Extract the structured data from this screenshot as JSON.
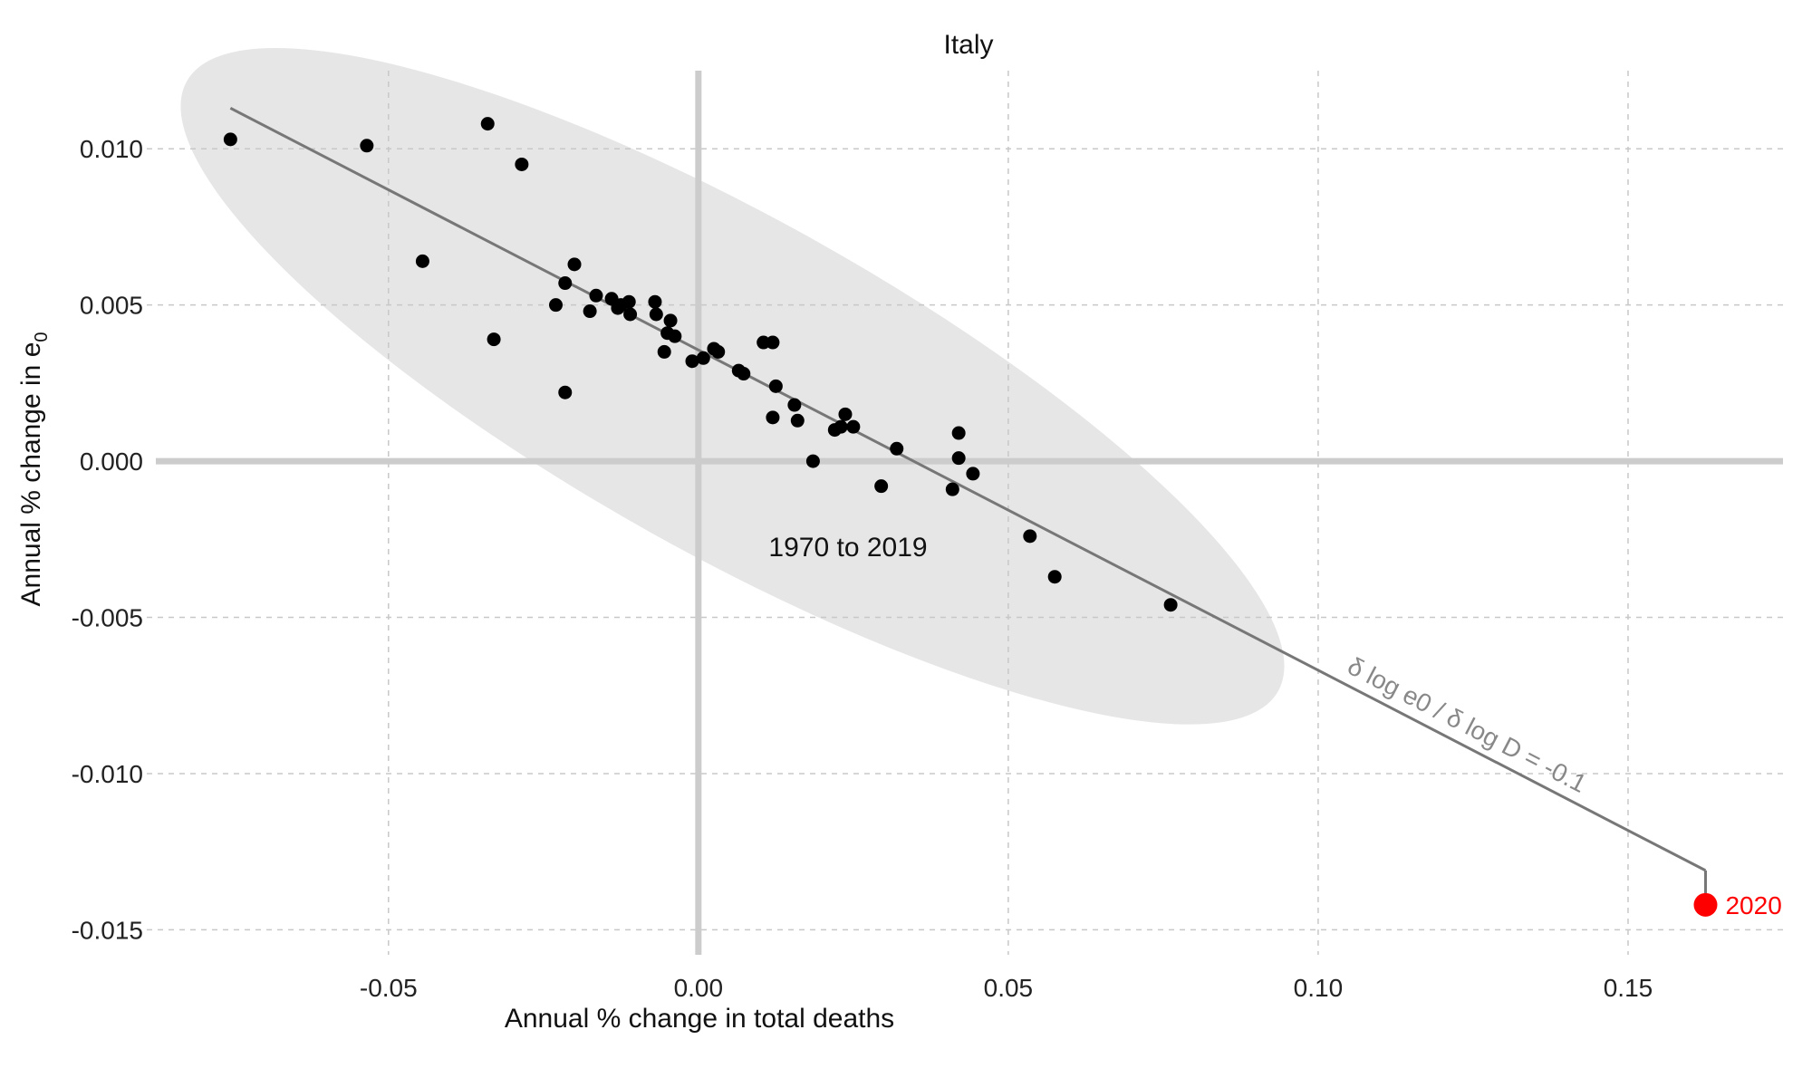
{
  "chart_data": {
    "type": "scatter",
    "title": "Italy",
    "xlabel": "Annual % change in total deaths",
    "ylabel_main": "Annual % change in e",
    "ylabel_sub": "0",
    "xlim": [
      -0.089,
      0.175
    ],
    "ylim": [
      -0.0158,
      0.0125
    ],
    "x_ticks": [
      -0.05,
      0.0,
      0.05,
      0.1,
      0.15
    ],
    "x_tick_labels": [
      "-0.05",
      "0.00",
      "0.05",
      "0.10",
      "0.15"
    ],
    "y_ticks": [
      -0.015,
      -0.01,
      -0.005,
      0.0,
      0.005,
      0.01
    ],
    "y_tick_labels": [
      "-0.015",
      "-0.010",
      "-0.005",
      "0.000",
      "0.005",
      "0.010"
    ],
    "grid": true,
    "colors": {
      "points": "#000000",
      "highlight": "#ff0000",
      "line": "#777777",
      "ellipse": "#e6e6e6",
      "grid": "#c8c8c8",
      "zero_lines": "#cccccc"
    },
    "points": [
      {
        "x": -0.0755,
        "y": 0.0103
      },
      {
        "x": -0.0535,
        "y": 0.0101
      },
      {
        "x": -0.034,
        "y": 0.0108
      },
      {
        "x": -0.0285,
        "y": 0.0095
      },
      {
        "x": -0.0445,
        "y": 0.0064
      },
      {
        "x": -0.033,
        "y": 0.0039
      },
      {
        "x": -0.02,
        "y": 0.0063
      },
      {
        "x": -0.0215,
        "y": 0.0057
      },
      {
        "x": -0.023,
        "y": 0.005
      },
      {
        "x": -0.0175,
        "y": 0.0048
      },
      {
        "x": -0.0165,
        "y": 0.0053
      },
      {
        "x": -0.014,
        "y": 0.0052
      },
      {
        "x": -0.013,
        "y": 0.0049
      },
      {
        "x": -0.0125,
        "y": 0.005
      },
      {
        "x": -0.011,
        "y": 0.0047
      },
      {
        "x": -0.0112,
        "y": 0.0051
      },
      {
        "x": -0.007,
        "y": 0.0051
      },
      {
        "x": -0.0068,
        "y": 0.0047
      },
      {
        "x": -0.0045,
        "y": 0.0045
      },
      {
        "x": -0.005,
        "y": 0.0041
      },
      {
        "x": -0.0038,
        "y": 0.004
      },
      {
        "x": -0.0055,
        "y": 0.0035
      },
      {
        "x": -0.0215,
        "y": 0.0022
      },
      {
        "x": -0.001,
        "y": 0.0032
      },
      {
        "x": 0.0008,
        "y": 0.0033
      },
      {
        "x": 0.0025,
        "y": 0.0036
      },
      {
        "x": 0.0032,
        "y": 0.0035
      },
      {
        "x": 0.0065,
        "y": 0.0029
      },
      {
        "x": 0.0073,
        "y": 0.0028
      },
      {
        "x": 0.0105,
        "y": 0.0038
      },
      {
        "x": 0.012,
        "y": 0.0038
      },
      {
        "x": 0.0125,
        "y": 0.0024
      },
      {
        "x": 0.0155,
        "y": 0.0018
      },
      {
        "x": 0.012,
        "y": 0.0014
      },
      {
        "x": 0.016,
        "y": 0.0013
      },
      {
        "x": 0.022,
        "y": 0.001
      },
      {
        "x": 0.023,
        "y": 0.0011
      },
      {
        "x": 0.0237,
        "y": 0.0015
      },
      {
        "x": 0.025,
        "y": 0.0011
      },
      {
        "x": 0.0185,
        "y": 0.0
      },
      {
        "x": 0.032,
        "y": 0.0004
      },
      {
        "x": 0.0295,
        "y": -0.0008
      },
      {
        "x": 0.042,
        "y": 0.0009
      },
      {
        "x": 0.042,
        "y": 0.0001
      },
      {
        "x": 0.0443,
        "y": -0.0004
      },
      {
        "x": 0.041,
        "y": -0.0009
      },
      {
        "x": 0.0535,
        "y": -0.0024
      },
      {
        "x": 0.0575,
        "y": -0.0037
      },
      {
        "x": 0.0762,
        "y": -0.0046
      }
    ],
    "highlight": {
      "x": 0.1625,
      "y": -0.0142,
      "label": "2020"
    },
    "fit_line": {
      "x": [
        -0.0755,
        0.1625
      ],
      "y": [
        0.0113,
        -0.0131
      ]
    },
    "ellipse_center": {
      "x": 0.0055,
      "y": 0.0024
    },
    "ellipse_label": "1970 to 2019",
    "slope_label": "δ log e0 / δ log D = -0.1"
  }
}
